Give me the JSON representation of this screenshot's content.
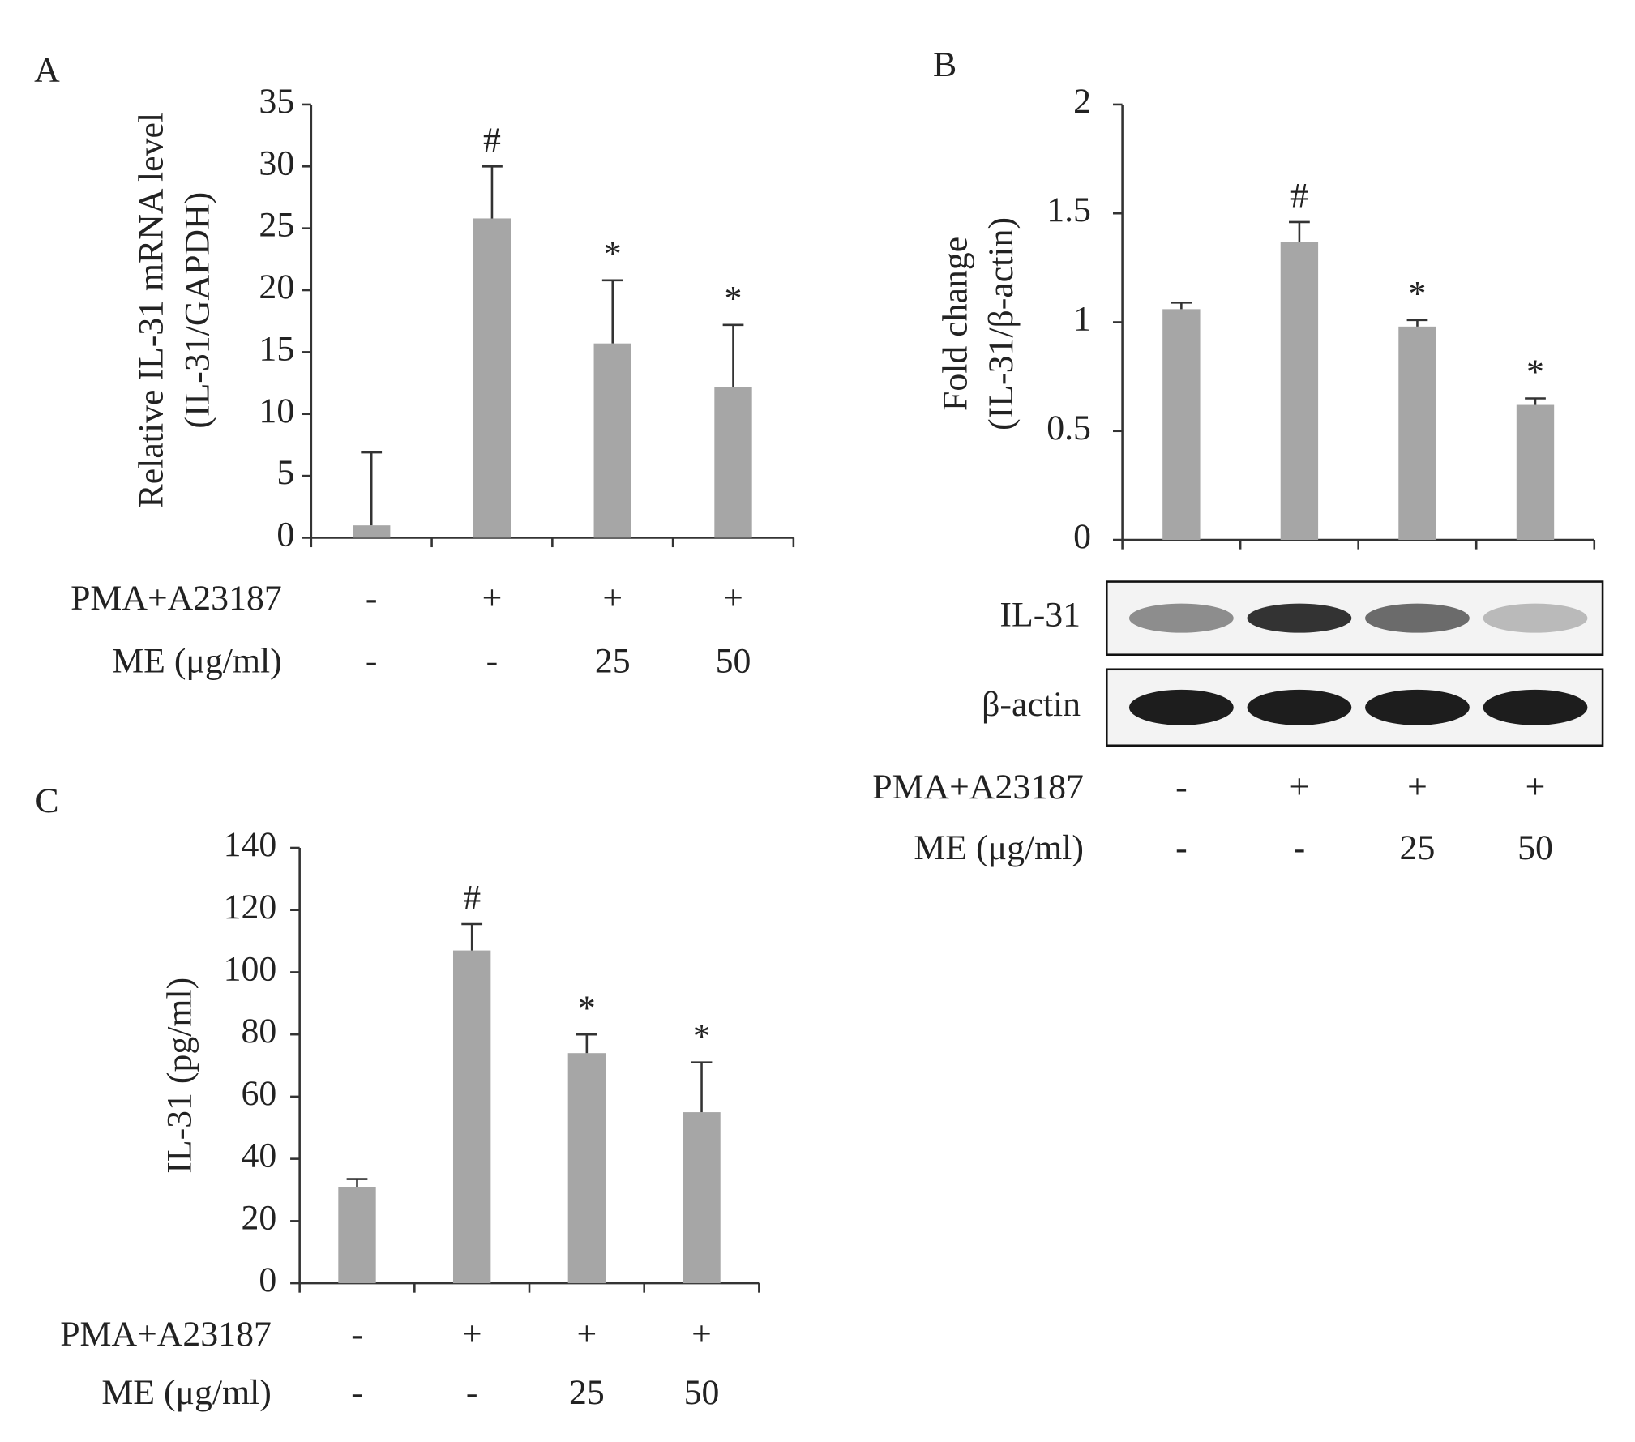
{
  "chart_data": [
    {
      "type": "bar",
      "panel": "A",
      "ylabel": [
        "Relative IL-31 mRNA level",
        "(IL-31/GAPDH)"
      ],
      "ylim": [
        0,
        35
      ],
      "yticks": [
        0,
        5,
        10,
        15,
        20,
        25,
        30,
        35
      ],
      "series": [
        {
          "color": "#a6a6a6",
          "values": [
            1,
            25.8,
            15.7,
            12.2
          ],
          "errors": [
            5.9,
            4.2,
            5.1,
            5.0
          ]
        }
      ],
      "annotations": [
        null,
        "#",
        "*",
        "*"
      ],
      "treatments": [
        {
          "label": "PMA+A23187",
          "values": [
            "-",
            "+",
            "+",
            "+"
          ]
        },
        {
          "label": "ME (μg/ml)",
          "values": [
            "-",
            "-",
            "25",
            "50"
          ]
        }
      ]
    },
    {
      "type": "bar",
      "panel": "B",
      "ylabel": [
        "Fold change",
        "(IL-31/β-actin)"
      ],
      "ylim": [
        0,
        2
      ],
      "yticks": [
        0,
        0.5,
        1,
        1.5,
        2
      ],
      "series": [
        {
          "color": "#a6a6a6",
          "values": [
            1.06,
            1.37,
            0.98,
            0.62
          ],
          "errors": [
            0.03,
            0.09,
            0.03,
            0.03
          ]
        }
      ],
      "annotations": [
        null,
        "#",
        "*",
        "*"
      ],
      "blots": [
        {
          "label": "IL-31"
        },
        {
          "label": "β-actin"
        }
      ],
      "treatments": [
        {
          "label": "PMA+A23187",
          "values": [
            "-",
            "+",
            "+",
            "+"
          ]
        },
        {
          "label": "ME (μg/ml)",
          "values": [
            "-",
            "-",
            "25",
            "50"
          ]
        }
      ]
    },
    {
      "type": "bar",
      "panel": "C",
      "ylabel": [
        "IL-31 (pg/ml)"
      ],
      "ylim": [
        0,
        140
      ],
      "yticks": [
        0,
        20,
        40,
        60,
        80,
        100,
        120,
        140
      ],
      "series": [
        {
          "color": "#a6a6a6",
          "values": [
            31,
            107,
            74,
            55
          ],
          "errors": [
            2.5,
            8.5,
            6,
            16
          ]
        }
      ],
      "annotations": [
        null,
        "#",
        "*",
        "*"
      ],
      "treatments": [
        {
          "label": "PMA+A23187",
          "values": [
            "-",
            "+",
            "+",
            "+"
          ]
        },
        {
          "label": "ME (μg/ml)",
          "values": [
            "-",
            "-",
            "25",
            "50"
          ]
        }
      ]
    }
  ]
}
